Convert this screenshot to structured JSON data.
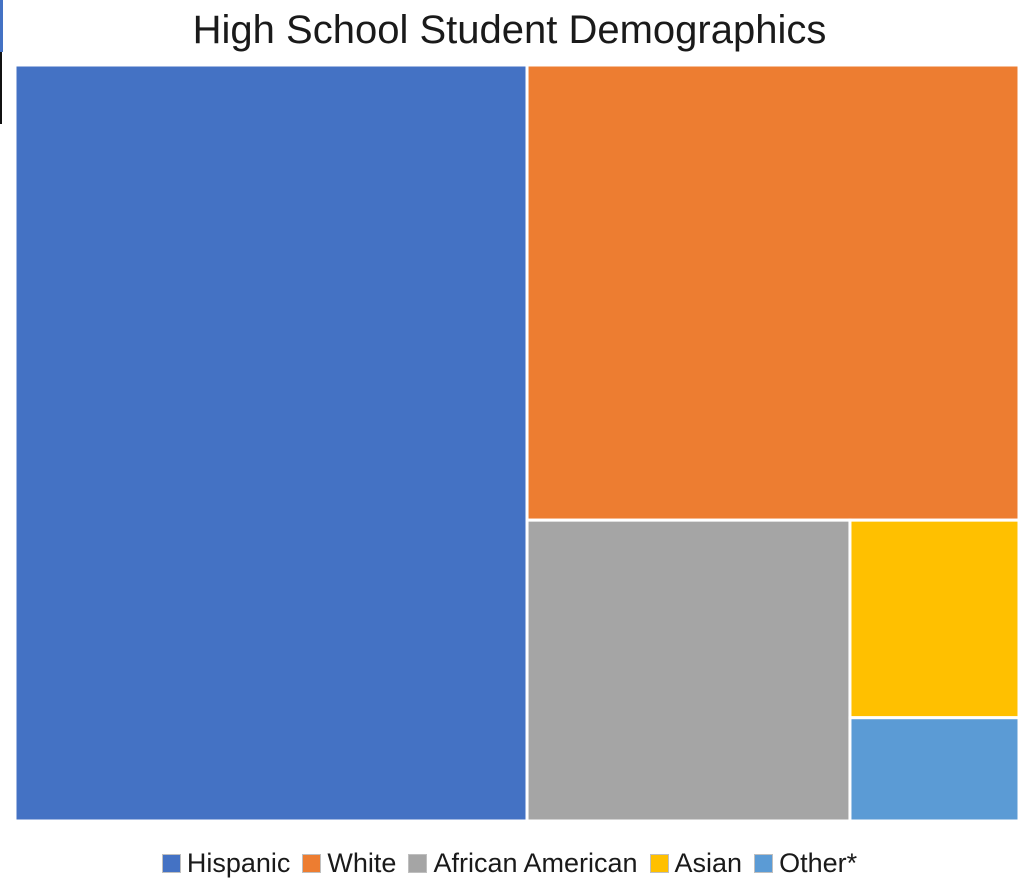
{
  "chart_data": {
    "type": "treemap",
    "title": "High School Student Demographics",
    "series": [
      {
        "name": "Hispanic",
        "value": 51.0,
        "color": "#4472C4"
      },
      {
        "name": "White",
        "value": 29.5,
        "color": "#ED7D31"
      },
      {
        "name": "African American",
        "value": 12.8,
        "color": "#A5A5A5"
      },
      {
        "name": "Asian",
        "value": 4.4,
        "color": "#FFC000"
      },
      {
        "name": "Other*",
        "value": 2.3,
        "color": "#5B9BD5"
      }
    ],
    "legend_position": "bottom"
  }
}
